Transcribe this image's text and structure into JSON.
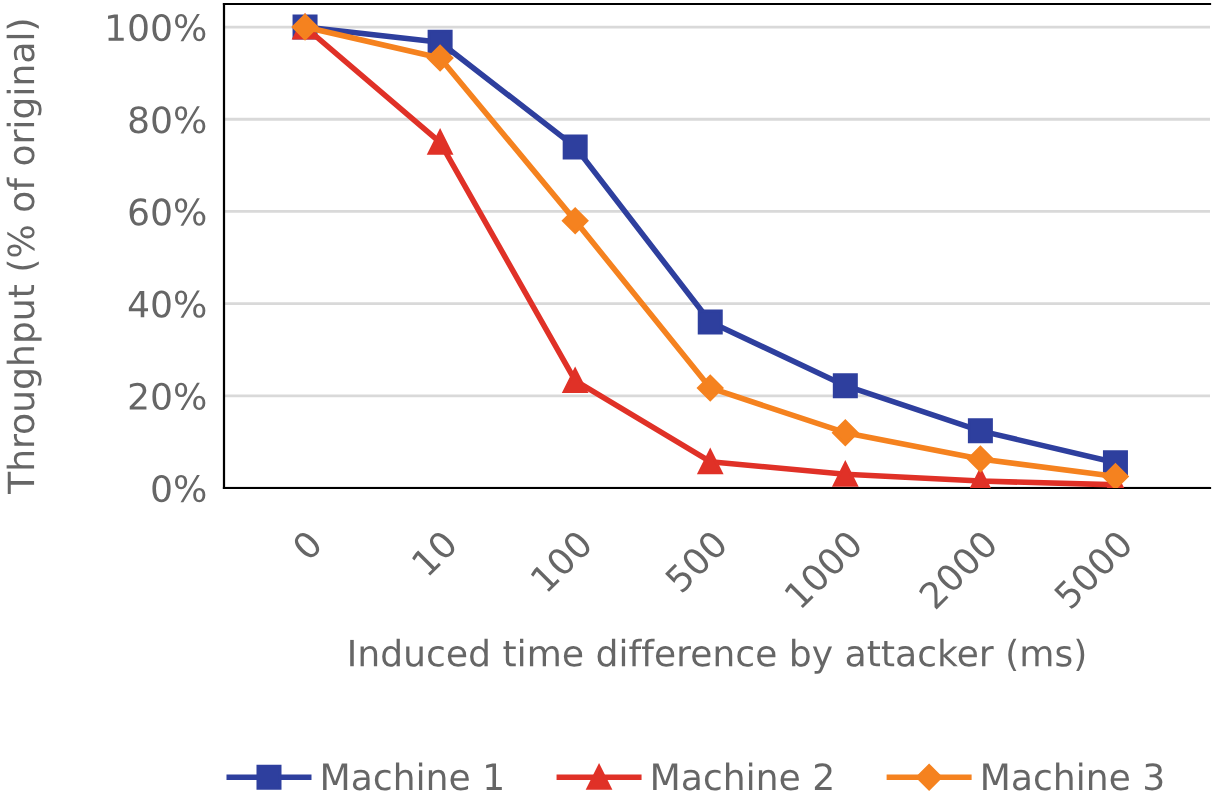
{
  "chart_data": {
    "type": "line",
    "xlabel": "Induced time difference by attacker (ms)",
    "ylabel": "Throughput (% of original)",
    "categories": [
      "0",
      "10",
      "100",
      "500",
      "1000",
      "2000",
      "5000"
    ],
    "series": [
      {
        "name": "Machine 1",
        "color": "#2e3f9e",
        "marker": "square",
        "values": [
          100,
          96.7,
          74,
          36,
          22.2,
          12.4,
          5.5
        ]
      },
      {
        "name": "Machine 2",
        "color": "#e03127",
        "marker": "triangle",
        "values": [
          100,
          75,
          23.3,
          5.7,
          3,
          1.5,
          0.7
        ]
      },
      {
        "name": "Machine 3",
        "color": "#f5821f",
        "marker": "diamond",
        "values": [
          100,
          93.3,
          58,
          21.7,
          12,
          6.3,
          2.5
        ]
      }
    ],
    "ylim": [
      0,
      105
    ],
    "yticks": [
      {
        "value": 0,
        "label": "0%"
      },
      {
        "value": 20,
        "label": "20%"
      },
      {
        "value": 40,
        "label": "40%"
      },
      {
        "value": 60,
        "label": "60%"
      },
      {
        "value": 80,
        "label": "80%"
      },
      {
        "value": 100,
        "label": "100%"
      }
    ],
    "grid": "y",
    "legend": "bottom",
    "line_style": "solid"
  }
}
